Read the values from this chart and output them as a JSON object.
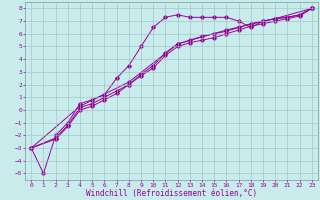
{
  "xlabel": "Windchill (Refroidissement éolien,°C)",
  "bg_color": "#c8ecec",
  "line_color": "#990099",
  "grid_color": "#9dbdbd",
  "xlim": [
    -0.5,
    23.5
  ],
  "ylim": [
    -5.5,
    8.5
  ],
  "xticks": [
    0,
    1,
    2,
    3,
    4,
    5,
    6,
    7,
    8,
    9,
    10,
    11,
    12,
    13,
    14,
    15,
    16,
    17,
    18,
    19,
    20,
    21,
    22,
    23
  ],
  "yticks": [
    -5,
    -4,
    -3,
    -2,
    -1,
    0,
    1,
    2,
    3,
    4,
    5,
    6,
    7,
    8
  ],
  "series1": [
    [
      0,
      -3.0
    ],
    [
      1,
      -5.0
    ],
    [
      2,
      -2.0
    ],
    [
      3,
      -1.0
    ],
    [
      4,
      0.5
    ],
    [
      5,
      0.8
    ],
    [
      6,
      1.2
    ],
    [
      7,
      2.5
    ],
    [
      8,
      3.5
    ],
    [
      9,
      5.0
    ],
    [
      10,
      6.5
    ],
    [
      11,
      7.3
    ],
    [
      12,
      7.5
    ],
    [
      13,
      7.3
    ],
    [
      14,
      7.3
    ],
    [
      15,
      7.3
    ],
    [
      16,
      7.3
    ],
    [
      17,
      7.0
    ],
    [
      18,
      6.5
    ],
    [
      19,
      7.0
    ],
    [
      20,
      7.2
    ],
    [
      21,
      7.3
    ],
    [
      22,
      7.5
    ],
    [
      23,
      8.0
    ]
  ],
  "series2": [
    [
      0,
      -3.0
    ],
    [
      2,
      -2.2
    ],
    [
      3,
      -1.2
    ],
    [
      4,
      0.2
    ],
    [
      5,
      0.5
    ],
    [
      6,
      1.0
    ],
    [
      7,
      1.5
    ],
    [
      8,
      2.0
    ],
    [
      9,
      2.8
    ],
    [
      10,
      3.5
    ],
    [
      11,
      4.5
    ],
    [
      12,
      5.2
    ],
    [
      13,
      5.5
    ],
    [
      14,
      5.8
    ],
    [
      15,
      6.0
    ],
    [
      16,
      6.2
    ],
    [
      17,
      6.5
    ],
    [
      18,
      6.8
    ],
    [
      19,
      7.0
    ],
    [
      20,
      7.2
    ],
    [
      21,
      7.3
    ],
    [
      22,
      7.5
    ],
    [
      23,
      8.0
    ]
  ],
  "series3": [
    [
      0,
      -3.0
    ],
    [
      2,
      -2.3
    ],
    [
      3,
      -1.3
    ],
    [
      4,
      0.0
    ],
    [
      5,
      0.3
    ],
    [
      6,
      0.8
    ],
    [
      7,
      1.3
    ],
    [
      8,
      2.0
    ],
    [
      9,
      2.7
    ],
    [
      10,
      3.3
    ],
    [
      11,
      4.3
    ],
    [
      12,
      5.0
    ],
    [
      13,
      5.3
    ],
    [
      14,
      5.5
    ],
    [
      15,
      5.7
    ],
    [
      16,
      6.0
    ],
    [
      17,
      6.3
    ],
    [
      18,
      6.6
    ],
    [
      19,
      6.8
    ],
    [
      20,
      7.0
    ],
    [
      21,
      7.2
    ],
    [
      22,
      7.4
    ],
    [
      23,
      8.0
    ]
  ],
  "series4": [
    [
      0,
      -3.0
    ],
    [
      4,
      0.3
    ],
    [
      8,
      2.2
    ],
    [
      12,
      5.2
    ],
    [
      16,
      6.3
    ],
    [
      20,
      7.2
    ],
    [
      23,
      8.0
    ]
  ],
  "xlabel_fontsize": 5.5,
  "tick_fontsize": 4.5,
  "linewidth": 0.7,
  "markersize": 1.8
}
